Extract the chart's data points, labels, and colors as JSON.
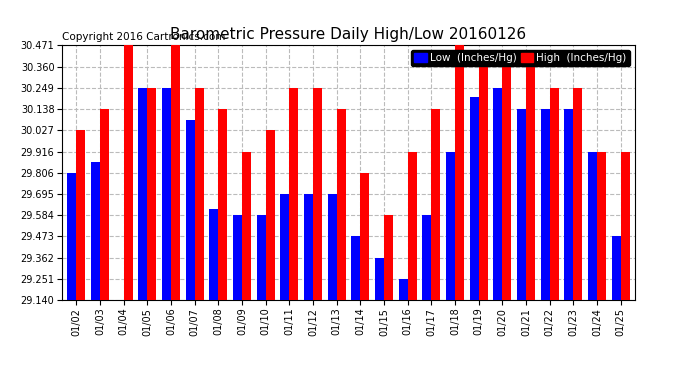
{
  "title": "Barometric Pressure Daily High/Low 20160126",
  "copyright": "Copyright 2016 Cartronics.com",
  "legend_low": "Low  (Inches/Hg)",
  "legend_high": "High  (Inches/Hg)",
  "categories": [
    "01/02",
    "01/03",
    "01/04",
    "01/05",
    "01/06",
    "01/07",
    "01/08",
    "01/09",
    "01/10",
    "01/11",
    "01/12",
    "01/13",
    "01/14",
    "01/15",
    "01/16",
    "01/17",
    "01/18",
    "01/19",
    "01/20",
    "01/21",
    "01/22",
    "01/23",
    "01/24",
    "01/25"
  ],
  "low_values": [
    29.806,
    29.863,
    29.14,
    30.249,
    30.249,
    30.079,
    29.616,
    29.584,
    29.584,
    29.695,
    29.695,
    29.695,
    29.473,
    29.362,
    29.251,
    29.584,
    29.916,
    30.2,
    30.249,
    30.138,
    30.138,
    30.138,
    29.916,
    29.473
  ],
  "high_values": [
    30.027,
    30.138,
    30.471,
    30.249,
    30.471,
    30.249,
    30.138,
    29.916,
    30.027,
    30.249,
    30.249,
    30.138,
    29.806,
    29.584,
    29.916,
    30.138,
    30.471,
    30.36,
    30.36,
    30.36,
    30.249,
    30.249,
    29.916,
    29.916
  ],
  "ylim_min": 29.14,
  "ylim_max": 30.471,
  "yticks": [
    29.14,
    29.251,
    29.362,
    29.473,
    29.584,
    29.695,
    29.806,
    29.916,
    30.027,
    30.138,
    30.249,
    30.36,
    30.471
  ],
  "low_color": "#0000ff",
  "high_color": "#ff0000",
  "background_color": "#ffffff",
  "plot_bg_color": "#ffffff",
  "title_fontsize": 11,
  "copyright_fontsize": 7.5,
  "bar_width": 0.38,
  "grid_color": "#bbbbbb"
}
